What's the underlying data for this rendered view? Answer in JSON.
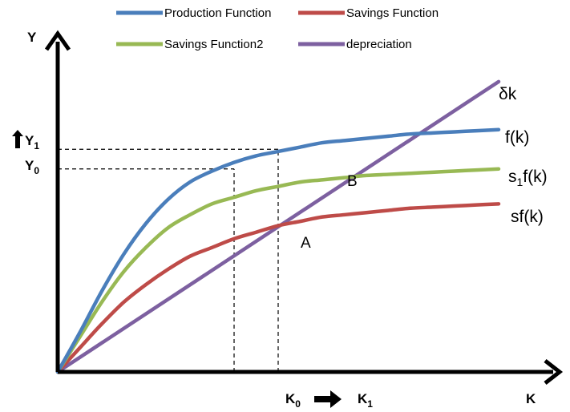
{
  "chart_data": {
    "type": "line",
    "title": "",
    "xlabel": "K",
    "ylabel": "Y",
    "xlim": [
      0,
      1
    ],
    "ylim": [
      0,
      1.3
    ],
    "legend": {
      "placement": "top",
      "entries": [
        {
          "name": "Production Function",
          "color": "#4a7ebb"
        },
        {
          "name": "Savings Function",
          "color": "#be4b48"
        },
        {
          "name": "Savings Function2",
          "color": "#98b954"
        },
        {
          "name": "depreciation",
          "color": "#7d60a0"
        }
      ]
    },
    "series": [
      {
        "name": "Production Function",
        "label": "f(k)",
        "color": "#4a7ebb",
        "x": [
          0,
          0.05,
          0.1,
          0.15,
          0.2,
          0.25,
          0.3,
          0.35,
          0.4,
          0.45,
          0.5,
          0.55,
          0.6,
          0.65,
          0.7,
          0.75,
          0.8,
          0.85,
          0.9,
          0.95,
          1.0
        ],
        "y": [
          0,
          0.18,
          0.37,
          0.54,
          0.68,
          0.79,
          0.87,
          0.92,
          0.96,
          0.99,
          1.01,
          1.03,
          1.05,
          1.06,
          1.07,
          1.08,
          1.09,
          1.095,
          1.1,
          1.105,
          1.11
        ]
      },
      {
        "name": "Savings Function2",
        "label": "s1f(k)",
        "color": "#98b954",
        "x": [
          0,
          0.05,
          0.1,
          0.15,
          0.2,
          0.25,
          0.3,
          0.35,
          0.4,
          0.45,
          0.5,
          0.55,
          0.6,
          0.65,
          0.7,
          0.75,
          0.8,
          0.85,
          0.9,
          0.95,
          1.0
        ],
        "y": [
          0,
          0.16,
          0.32,
          0.46,
          0.57,
          0.66,
          0.72,
          0.77,
          0.8,
          0.83,
          0.85,
          0.87,
          0.88,
          0.89,
          0.9,
          0.905,
          0.91,
          0.915,
          0.92,
          0.925,
          0.93
        ]
      },
      {
        "name": "Savings Function",
        "label": "sf(k)",
        "color": "#be4b48",
        "x": [
          0,
          0.05,
          0.1,
          0.15,
          0.2,
          0.25,
          0.3,
          0.35,
          0.4,
          0.45,
          0.5,
          0.55,
          0.6,
          0.65,
          0.7,
          0.75,
          0.8,
          0.85,
          0.9,
          0.95,
          1.0
        ],
        "y": [
          0,
          0.11,
          0.22,
          0.32,
          0.4,
          0.47,
          0.53,
          0.57,
          0.61,
          0.64,
          0.67,
          0.69,
          0.71,
          0.72,
          0.73,
          0.74,
          0.75,
          0.755,
          0.76,
          0.765,
          0.77
        ]
      },
      {
        "name": "depreciation",
        "label": "δk",
        "color": "#7d60a0",
        "x": [
          0,
          1.0
        ],
        "y": [
          0,
          1.33
        ]
      }
    ],
    "reference_lines": [
      {
        "kind": "horizontal",
        "label": "Y1",
        "y": 1.02,
        "x_to": 0.5
      },
      {
        "kind": "horizontal",
        "label": "Y0",
        "y": 0.93,
        "x_to": 0.4
      },
      {
        "kind": "vertical",
        "label": "K0",
        "x": 0.4
      },
      {
        "kind": "vertical",
        "label": "K1",
        "x": 0.5
      }
    ],
    "points": [
      {
        "label": "A",
        "x": 0.4,
        "y": 0.55
      },
      {
        "label": "B",
        "x": 0.5,
        "y": 0.73
      }
    ],
    "annotations": {
      "y1_main": "Y",
      "y1_sub": "1",
      "y0_main": "Y",
      "y0_sub": "0",
      "k0_main": "K",
      "k0_sub": "0",
      "k1_main": "K",
      "k1_sub": "1",
      "s1f_pre": "s",
      "s1f_sub": "1",
      "s1f_post": "f(k)"
    },
    "grid": false
  }
}
